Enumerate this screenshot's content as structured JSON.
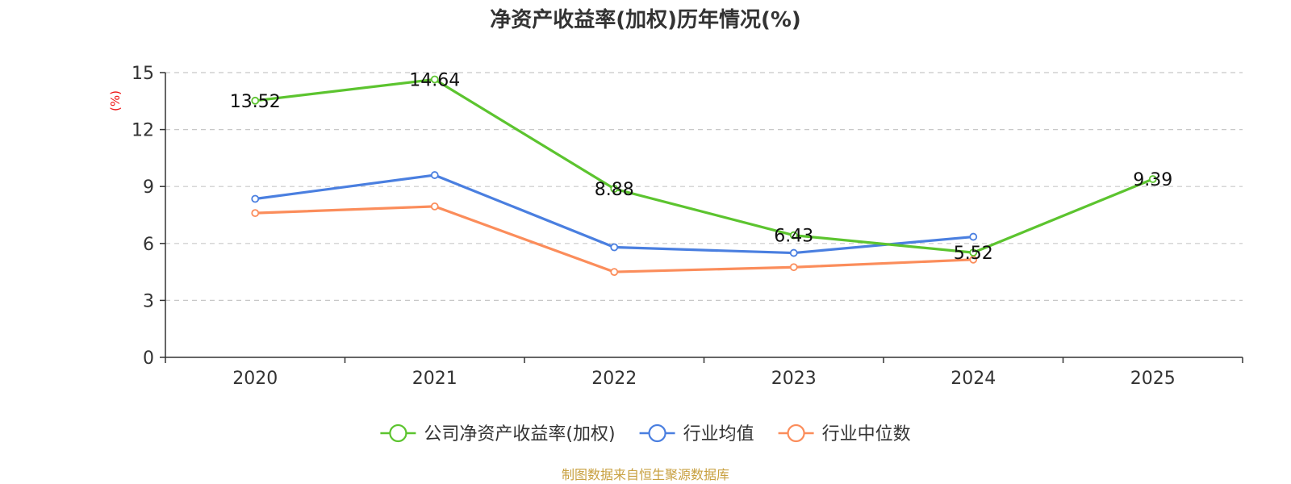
{
  "chart_data": {
    "type": "line",
    "title": "净资产收益率(加权)历年情况(%)",
    "ylabel": "(%)",
    "xlabel": "",
    "categories": [
      "2020",
      "2021",
      "2022",
      "2023",
      "2024",
      "2025"
    ],
    "ylim": [
      0,
      15
    ],
    "yticks": [
      0,
      3,
      6,
      9,
      12,
      15
    ],
    "grid": true,
    "legend_position": "bottom",
    "series": [
      {
        "name": "公司净资产收益率(加权)",
        "color": "#5cc42f",
        "values": [
          13.52,
          14.64,
          8.88,
          6.43,
          5.52,
          9.39
        ],
        "labels": [
          "13.52",
          "14.64",
          "8.88",
          "6.43",
          "5.52",
          "9.39"
        ]
      },
      {
        "name": "行业均值",
        "color": "#4a7fe0",
        "values": [
          8.35,
          9.6,
          5.8,
          5.5,
          6.35,
          null
        ]
      },
      {
        "name": "行业中位数",
        "color": "#fb8d5b",
        "values": [
          7.6,
          7.95,
          4.5,
          4.75,
          5.15,
          null
        ]
      }
    ],
    "source": "制图数据来自恒生聚源数据库"
  },
  "colors": {
    "axis": "#333333",
    "grid": "#c8c8c8",
    "ylabel": "#ee1111",
    "source": "#c8a040"
  }
}
